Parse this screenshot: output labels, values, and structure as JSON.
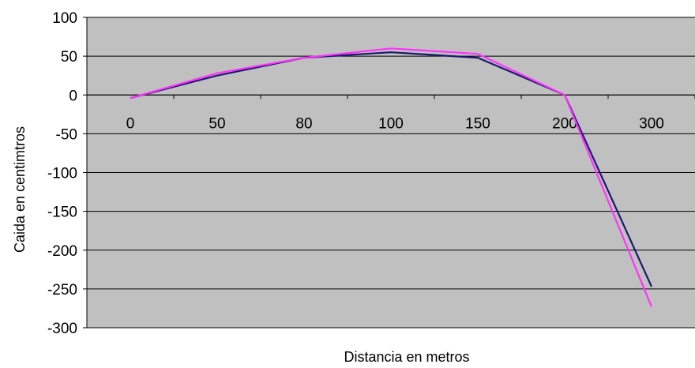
{
  "chart_data": {
    "type": "line",
    "categories": [
      "0",
      "50",
      "80",
      "100",
      "150",
      "200",
      "300"
    ],
    "series": [
      {
        "color": "#1a1a6e",
        "values": [
          -4,
          25,
          48,
          55,
          48,
          0,
          -247
        ]
      },
      {
        "color": "#ff33ff",
        "values": [
          -4,
          28,
          48,
          60,
          53,
          0,
          -273
        ]
      }
    ],
    "title": "",
    "xlabel": "Distancia en metros",
    "ylabel": "Caida en centimtros",
    "ylim": [
      -300,
      100
    ],
    "yticks": [
      100,
      50,
      0,
      -50,
      -100,
      -150,
      -200,
      -250,
      -300
    ],
    "grid": true,
    "plot_background": "#c0c0c0"
  }
}
